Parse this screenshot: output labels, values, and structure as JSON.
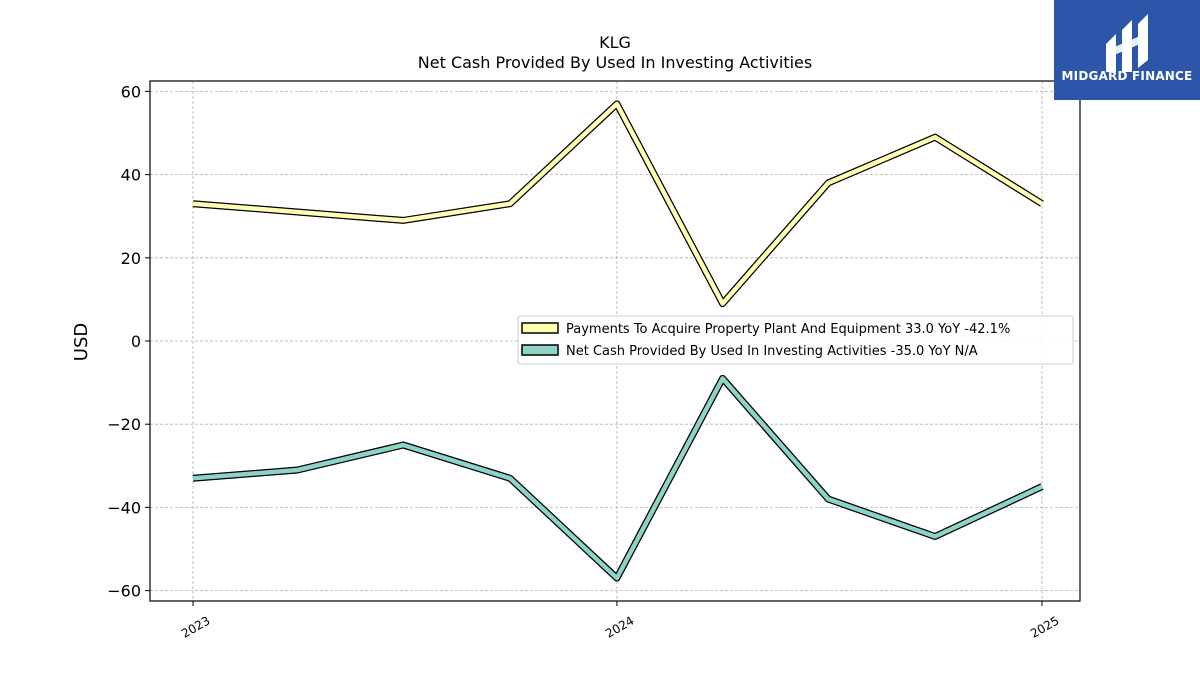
{
  "logo": {
    "text": "MIDGARD FINANCE"
  },
  "chart_data": {
    "type": "line",
    "title": "KLG",
    "subtitle": "Net Cash Provided By Used In Investing Activities",
    "ylabel": "USD",
    "xlabel": "",
    "ylim": [
      -62.5,
      62.5
    ],
    "yticks": [
      60,
      40,
      20,
      0,
      -20,
      -40,
      -60
    ],
    "ytick_labels": [
      "60",
      "40",
      "20",
      "0",
      "−20",
      "−40",
      "−60"
    ],
    "xticks": [
      "2023",
      "2024",
      "2025"
    ],
    "grid": true,
    "legend_position": "center-right",
    "x": [
      "2023-01-01",
      "2023-04-01",
      "2023-07-01",
      "2023-10-01",
      "2024-01-01",
      "2024-04-01",
      "2024-07-01",
      "2024-10-01",
      "2025-01-01"
    ],
    "series": [
      {
        "name": "Payments To Acquire Property Plant And Equipment  33.0 YoY -42.1%",
        "color": "#ffffb3",
        "values": [
          33,
          31,
          29,
          33,
          57,
          9,
          38,
          49,
          33
        ]
      },
      {
        "name": "Net Cash Provided By Used In Investing Activities  -35.0 YoY N/A",
        "color": "#8dd3c7",
        "values": [
          -33,
          -31,
          -25,
          -33,
          -57,
          -9,
          -38,
          -47,
          -35
        ]
      }
    ]
  }
}
